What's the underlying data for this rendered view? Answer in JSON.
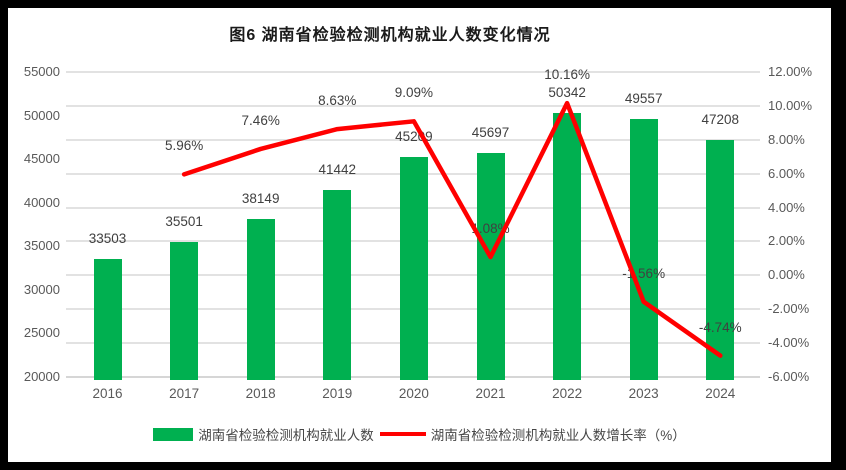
{
  "title": "图6 湖南省检验检测机构就业人数变化情况",
  "colors": {
    "bar": "#00B050",
    "line": "#FF0000",
    "gridline": "#E2E2E2",
    "axisline": "#D6D6D6",
    "tick_text": "#595959",
    "label_text": "#404040",
    "frame": "#000000",
    "panel_background": "#FFFFFF"
  },
  "legend": {
    "items": [
      {
        "swatch": "bar-swatch",
        "color": "#00B050",
        "label": "湖南省检验检测机构就业人数"
      },
      {
        "swatch": "line-swatch",
        "color": "#FF0000",
        "label": "湖南省检验检测机构就业人数增长率（%）"
      }
    ]
  },
  "chart_data": {
    "type": "combo-bar-line",
    "categories": [
      "2016",
      "2017",
      "2018",
      "2019",
      "2020",
      "2021",
      "2022",
      "2023",
      "2024"
    ],
    "series": [
      {
        "name": "湖南省检验检测机构就业人数",
        "type": "bar",
        "axis": "left",
        "color": "#00B050",
        "values": [
          33503,
          35501,
          38149,
          41442,
          45209,
          45697,
          50342,
          49557,
          47208
        ],
        "labels": [
          "33503",
          "35501",
          "38149",
          "41442",
          "45209",
          "45697",
          "50342",
          "49557",
          "47208"
        ]
      },
      {
        "name": "湖南省检验检测机构就业人数增长率（%）",
        "type": "line",
        "axis": "right",
        "color": "#FF0000",
        "values": [
          null,
          5.96,
          7.46,
          8.63,
          9.09,
          1.08,
          10.16,
          -1.56,
          -4.74
        ],
        "labels": [
          null,
          "5.96%",
          "7.46%",
          "8.63%",
          "9.09%",
          "1.08%",
          "10.16%",
          "-1.56%",
          "-4.74%"
        ]
      }
    ],
    "left_axis": {
      "min": 20000,
      "max": 55000,
      "step": 5000,
      "tick_labels_top_to_bottom": [
        "55000",
        "50000",
        "45000",
        "40000",
        "35000",
        "30000",
        "25000",
        "20000"
      ]
    },
    "right_axis": {
      "min": -6,
      "max": 12,
      "step": 2,
      "tick_labels_top_to_bottom": [
        "12.00%",
        "10.00%",
        "8.00%",
        "6.00%",
        "4.00%",
        "2.00%",
        "0.00%",
        "-2.00%",
        "-4.00%",
        "-6.00%"
      ]
    },
    "grid": true,
    "legend_position": "bottom"
  }
}
